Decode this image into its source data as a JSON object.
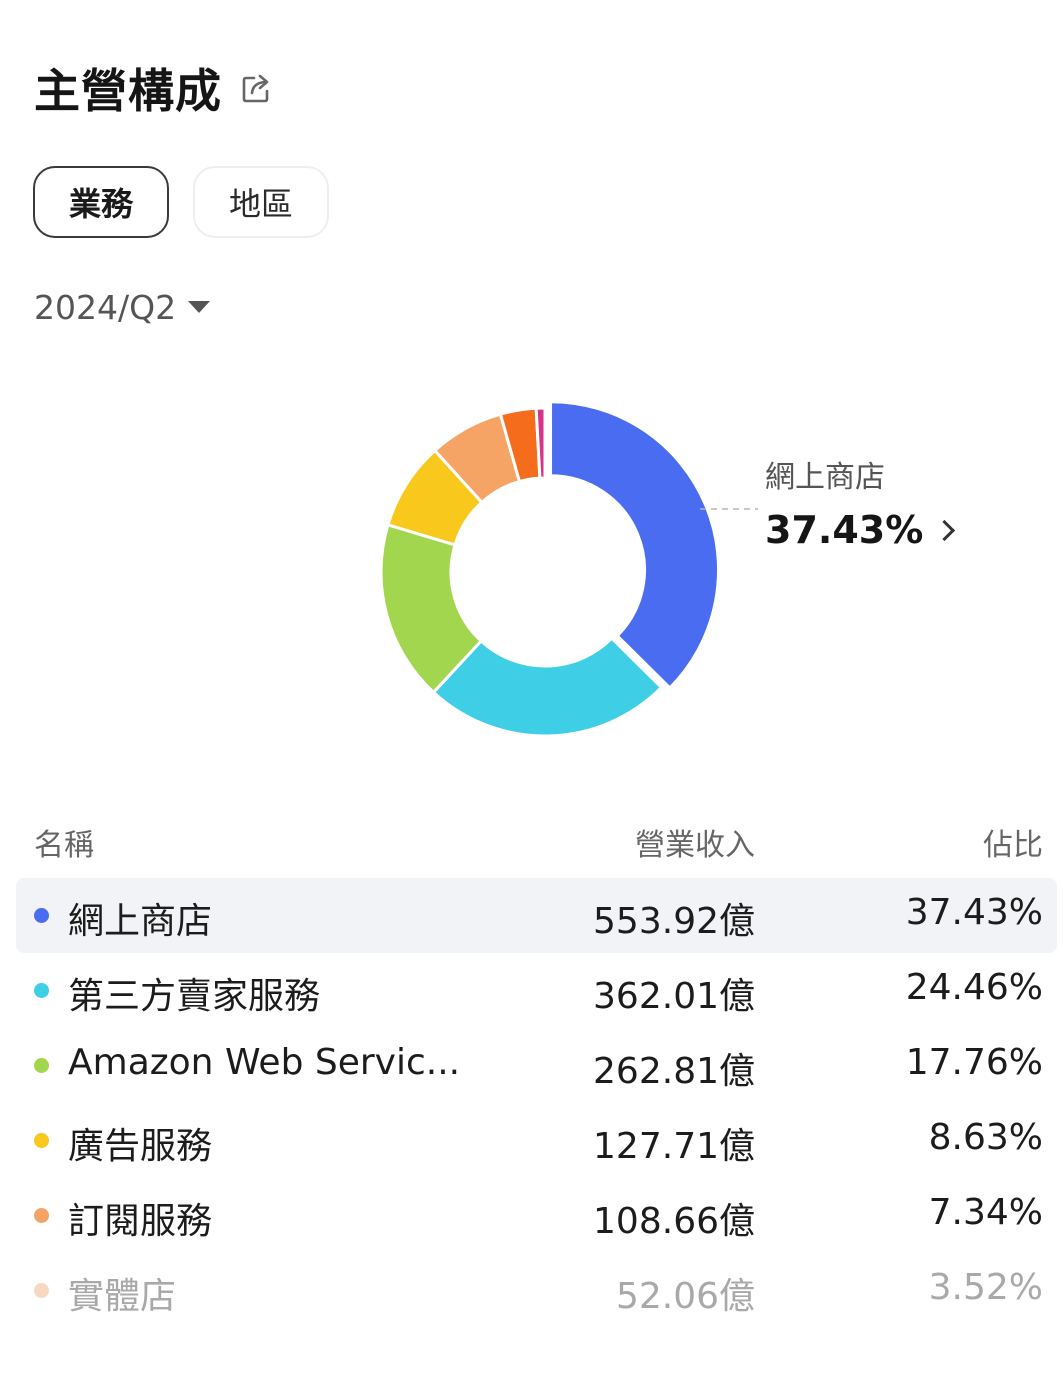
{
  "header": {
    "title": "主營構成"
  },
  "icons": {
    "share": "share-icon"
  },
  "tabs": [
    {
      "label": "業務",
      "active": true
    },
    {
      "label": "地區",
      "active": false
    }
  ],
  "period": {
    "label": "2024/Q2"
  },
  "callout": {
    "name": "網上商店",
    "value": "37.43%"
  },
  "table": {
    "headers": {
      "name": "名稱",
      "revenue": "營業收入",
      "share": "佔比"
    },
    "rows": [
      {
        "name": "網上商店",
        "revenue": "553.92億",
        "share": "37.43%",
        "color": "#4a6cf0"
      },
      {
        "name": "第三方賣家服務",
        "revenue": "362.01億",
        "share": "24.46%",
        "color": "#3ecfe6"
      },
      {
        "name": "Amazon Web Servic...",
        "revenue": "262.81億",
        "share": "17.76%",
        "color": "#a3d64f"
      },
      {
        "name": "廣告服務",
        "revenue": "127.71億",
        "share": "8.63%",
        "color": "#f8c81d"
      },
      {
        "name": "訂閱服務",
        "revenue": "108.66億",
        "share": "7.34%",
        "color": "#f5a466"
      },
      {
        "name": "實體店",
        "revenue": "52.06億",
        "share": "3.52%",
        "color": "#f0b88c"
      }
    ]
  },
  "chart_data": {
    "type": "pie",
    "categories": [
      "網上商店",
      "第三方賣家服務",
      "Amazon Web Servic...",
      "廣告服務",
      "訂閱服務",
      "實體店",
      ""
    ],
    "values": [
      37.43,
      24.46,
      17.76,
      8.63,
      7.34,
      3.52,
      0.86
    ],
    "colors": [
      "#4a6cf0",
      "#3ecfe6",
      "#a3d64f",
      "#f8c81d",
      "#f5a466",
      "#f56c1c",
      "#d6338a"
    ],
    "highlighted": "網上商店"
  }
}
